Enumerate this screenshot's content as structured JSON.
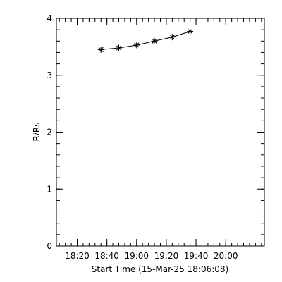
{
  "chart_data": {
    "type": "line",
    "title": "",
    "xlabel": "Start Time (15-Mar-25 18:06:08)",
    "ylabel": "R/Rs",
    "x_unit": "time of day (HH:MM)",
    "xlim": [
      "18:06",
      "20:26"
    ],
    "ylim": [
      0,
      4
    ],
    "xticks": [
      "18:20",
      "18:40",
      "19:00",
      "19:20",
      "19:40",
      "20:00"
    ],
    "yticks": [
      "0",
      "1",
      "2",
      "3",
      "4"
    ],
    "grid": false,
    "marker": "asterisk",
    "line_color": "#000000",
    "series": [
      {
        "x": [
          "18:36",
          "18:48",
          "19:00",
          "19:12",
          "19:24",
          "19:36"
        ],
        "y": [
          3.45,
          3.48,
          3.53,
          3.6,
          3.67,
          3.77
        ]
      }
    ]
  }
}
